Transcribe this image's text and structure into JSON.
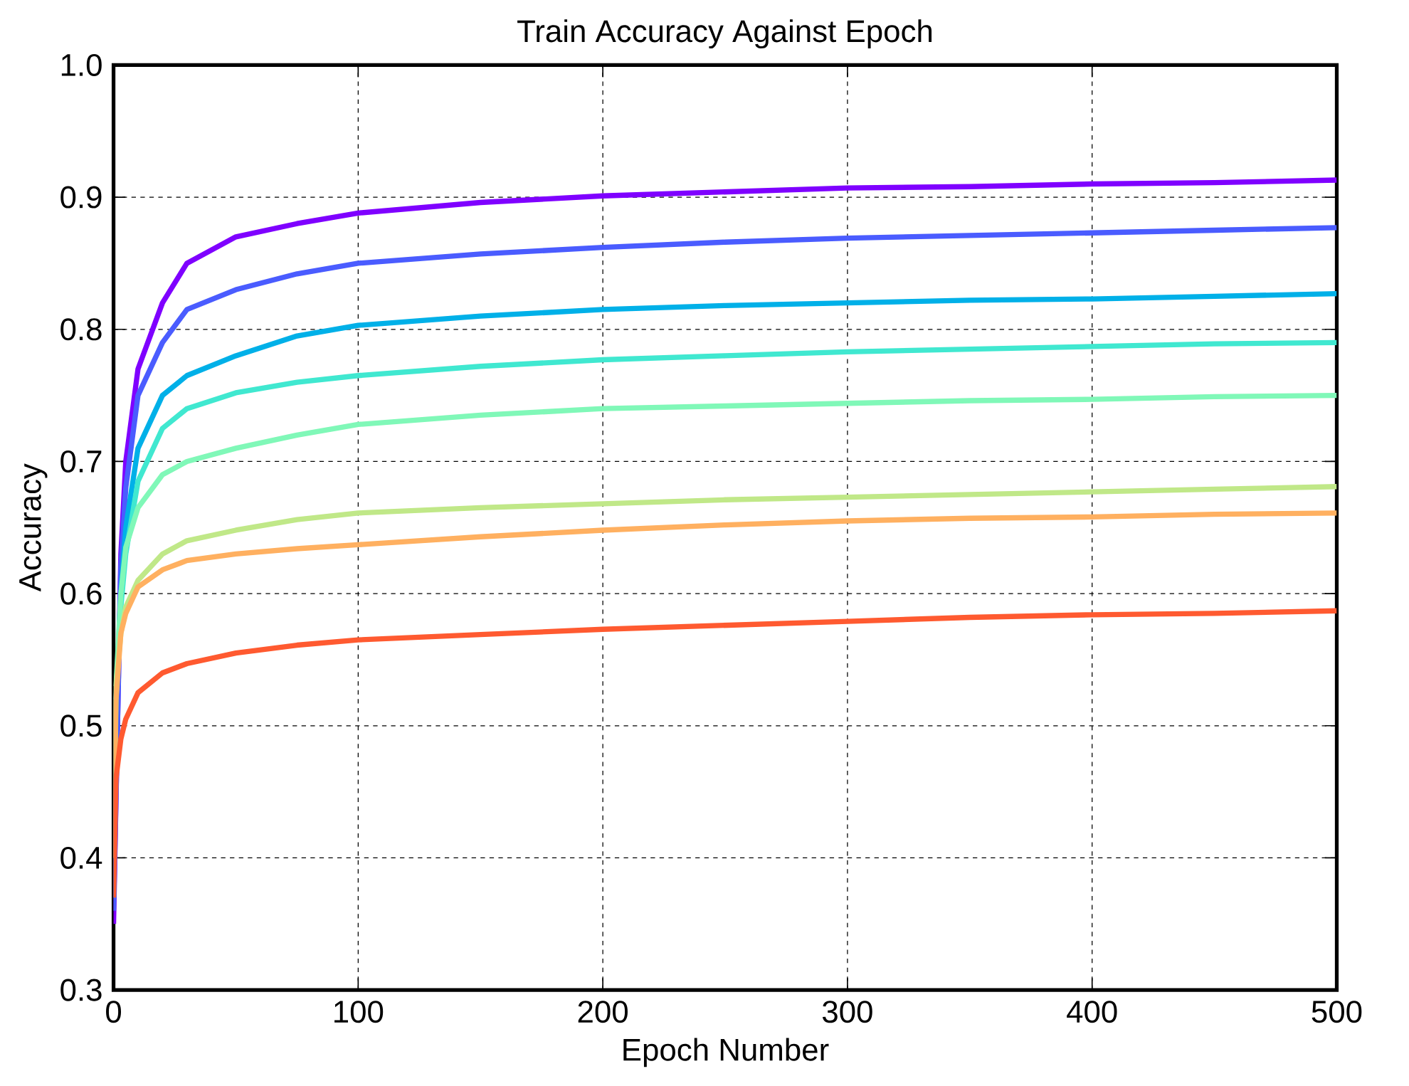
{
  "chart_data": {
    "type": "line",
    "title": "Train Accuracy Against Epoch",
    "xlabel": "Epoch Number",
    "ylabel": "Accuracy",
    "x": [
      0,
      1,
      3,
      5,
      10,
      20,
      30,
      50,
      75,
      100,
      150,
      200,
      250,
      300,
      350,
      400,
      450,
      500
    ],
    "xlim": [
      0,
      500
    ],
    "xticks": [
      0,
      100,
      200,
      300,
      400,
      500
    ],
    "ylim": [
      0.3,
      1.0
    ],
    "yticks": [
      0.3,
      0.4,
      0.5,
      0.6,
      0.7,
      0.8,
      0.9,
      {
        "value": 1.0,
        "label": "1.0"
      }
    ],
    "grid": true,
    "line_style": "solid",
    "marker": "none",
    "series": [
      {
        "color": "#7f00ff",
        "values": [
          0.35,
          null,
          0.63,
          0.7,
          0.77,
          0.82,
          0.85,
          0.87,
          0.88,
          0.888,
          0.896,
          0.901,
          0.904,
          0.907,
          0.908,
          0.91,
          0.911,
          0.913
        ]
      },
      {
        "color": "#4a5cff",
        "values": [
          0.36,
          null,
          0.62,
          0.68,
          0.75,
          0.79,
          0.815,
          0.83,
          0.842,
          0.85,
          0.857,
          0.862,
          0.866,
          0.869,
          0.871,
          0.873,
          0.875,
          0.877
        ]
      },
      {
        "color": "#00b0e8",
        "values": [
          0.37,
          0.52,
          0.6,
          0.65,
          0.71,
          0.75,
          0.765,
          0.78,
          0.795,
          0.803,
          0.81,
          0.815,
          0.818,
          0.82,
          0.822,
          0.823,
          0.825,
          0.827
        ]
      },
      {
        "color": "#40e8d0",
        "values": [
          null,
          0.52,
          0.59,
          0.63,
          0.685,
          0.725,
          0.74,
          0.752,
          0.76,
          0.765,
          0.772,
          0.777,
          0.78,
          0.783,
          0.785,
          0.787,
          0.789,
          0.79
        ]
      },
      {
        "color": "#80f8b8",
        "values": [
          null,
          0.53,
          0.6,
          0.635,
          0.665,
          0.69,
          0.7,
          0.71,
          0.72,
          0.728,
          0.735,
          0.74,
          0.742,
          0.744,
          0.746,
          0.747,
          0.749,
          0.75
        ]
      },
      {
        "color": "#c0e888",
        "values": [
          0.4,
          0.53,
          0.57,
          0.59,
          0.61,
          0.63,
          0.64,
          0.648,
          0.656,
          0.661,
          0.665,
          0.668,
          0.671,
          0.673,
          0.675,
          0.677,
          0.679,
          0.681
        ]
      },
      {
        "color": "#ffb060",
        "values": [
          0.4,
          0.52,
          0.57,
          0.585,
          0.605,
          0.618,
          0.625,
          0.63,
          0.634,
          0.637,
          0.643,
          0.648,
          0.652,
          0.655,
          0.657,
          0.658,
          0.66,
          0.661
        ]
      },
      {
        "color": "#ff5a30",
        "values": [
          0.37,
          0.46,
          0.49,
          0.505,
          0.525,
          0.54,
          0.547,
          0.555,
          0.561,
          0.565,
          0.569,
          0.573,
          0.576,
          0.579,
          0.582,
          0.584,
          0.585,
          0.587
        ]
      }
    ]
  }
}
